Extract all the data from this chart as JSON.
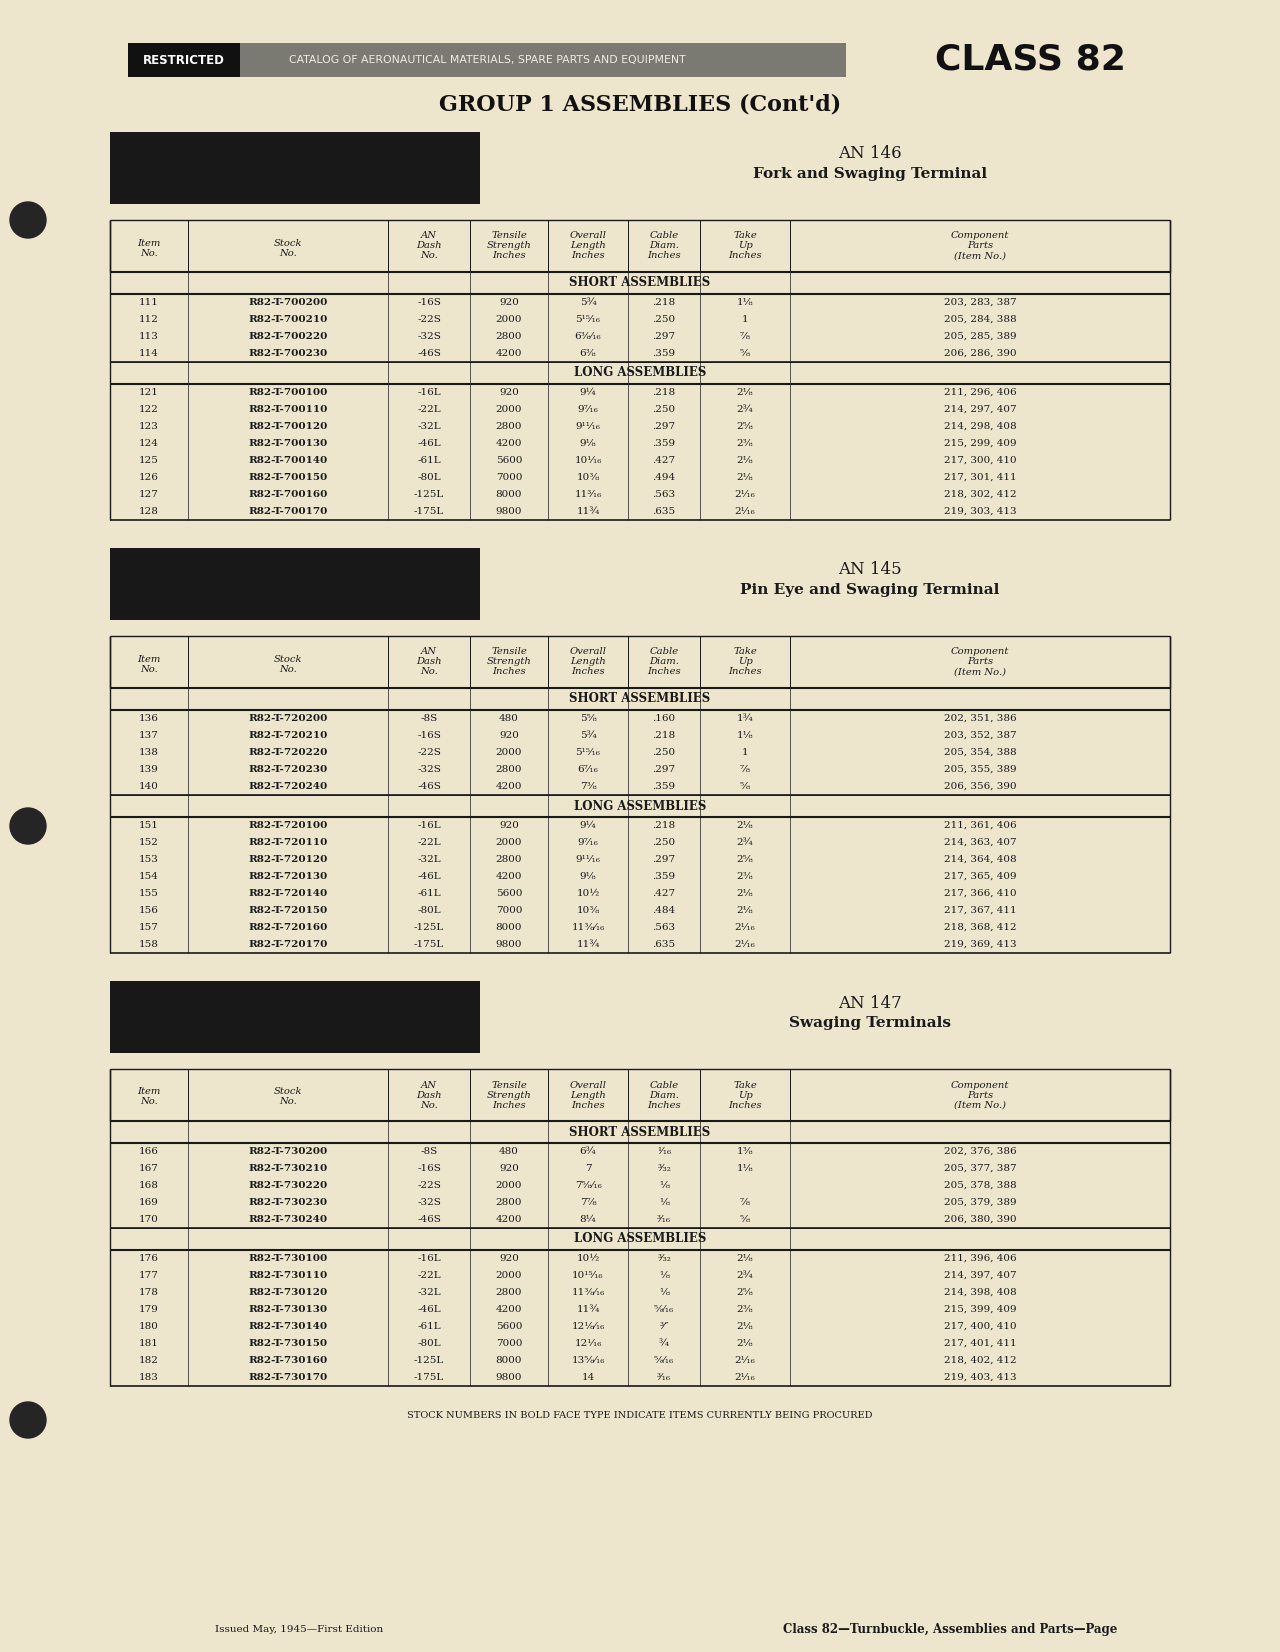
{
  "bg_color": "#ede5cc",
  "section1_title": "AN 146",
  "section1_subtitle": "Fork and Swaging Terminal",
  "section2_title": "AN 145",
  "section2_subtitle": "Pin Eye and Swaging Terminal",
  "section3_title": "AN 147",
  "section3_subtitle": "Swaging Terminals",
  "group_title": "GROUP 1 ASSEMBLIES (Cont'd)",
  "col_headers": [
    "Item\nNo.",
    "Stock\nNo.",
    "AN\nDash\nNo.",
    "Tensile\nStrength\nInches",
    "Overall\nLength\nInches",
    "Cable\nDiam.\nInches",
    "Take\nUp\nInches",
    "Component\nParts\n(Item No.)"
  ],
  "section1_short_rows": [
    [
      "111",
      "R82-T-700200",
      "-16S",
      "920",
      "5¾",
      ".218",
      "1⅛",
      "203, 283, 387"
    ],
    [
      "112",
      "R82-T-700210",
      "-22S",
      "2000",
      "5¹⁵⁄₁₆",
      ".250",
      "1",
      "205, 284, 388"
    ],
    [
      "113",
      "R82-T-700220",
      "-32S",
      "2800",
      "6⅜⁄₁₆",
      ".297",
      "⅞",
      "205, 285, 389"
    ],
    [
      "114",
      "R82-T-700230",
      "-46S",
      "4200",
      "6⅜",
      ".359",
      "⅝",
      "206, 286, 390"
    ]
  ],
  "section1_long_rows": [
    [
      "121",
      "R82-T-700100",
      "-16L",
      "920",
      "9¼",
      ".218",
      "2⅛",
      "211, 296, 406"
    ],
    [
      "122",
      "R82-T-700110",
      "-22L",
      "2000",
      "9⁷⁄₁₆",
      ".250",
      "2¾",
      "214, 297, 407"
    ],
    [
      "123",
      "R82-T-700120",
      "-32L",
      "2800",
      "9¹¹⁄₁₆",
      ".297",
      "2⅝",
      "214, 298, 408"
    ],
    [
      "124",
      "R82-T-700130",
      "-46L",
      "4200",
      "9⅛",
      ".359",
      "2⅜",
      "215, 299, 409"
    ],
    [
      "125",
      "R82-T-700140",
      "-61L",
      "5600",
      "10¹⁄₁₆",
      ".427",
      "2⅛",
      "217, 300, 410"
    ],
    [
      "126",
      "R82-T-700150",
      "-80L",
      "7000",
      "10⅜",
      ".494",
      "2⅛",
      "217, 301, 411"
    ],
    [
      "127",
      "R82-T-700160",
      "-125L",
      "8000",
      "11³⁄₁₆",
      ".563",
      "2¹⁄₁₆",
      "218, 302, 412"
    ],
    [
      "128",
      "R82-T-700170",
      "-175L",
      "9800",
      "11¾",
      ".635",
      "2¹⁄₁₆",
      "219, 303, 413"
    ]
  ],
  "section2_short_rows": [
    [
      "136",
      "R82-T-720200",
      "-8S",
      "480",
      "5⅝",
      ".160",
      "1¾",
      "202, 351, 386"
    ],
    [
      "137",
      "R82-T-720210",
      "-16S",
      "920",
      "5¾",
      ".218",
      "1⅛",
      "203, 352, 387"
    ],
    [
      "138",
      "R82-T-720220",
      "-22S",
      "2000",
      "5¹⁵⁄₁₆",
      ".250",
      "1",
      "205, 354, 388"
    ],
    [
      "139",
      "R82-T-720230",
      "-32S",
      "2800",
      "6⁷⁄₁₆",
      ".297",
      "⅞",
      "205, 355, 389"
    ],
    [
      "140",
      "R82-T-720240",
      "-46S",
      "4200",
      "7⅜",
      ".359",
      "⅝",
      "206, 356, 390"
    ]
  ],
  "section2_long_rows": [
    [
      "151",
      "R82-T-720100",
      "-16L",
      "920",
      "9¼",
      ".218",
      "2⅛",
      "211, 361, 406"
    ],
    [
      "152",
      "R82-T-720110",
      "-22L",
      "2000",
      "9⁷⁄₁₆",
      ".250",
      "2¾",
      "214, 363, 407"
    ],
    [
      "153",
      "R82-T-720120",
      "-32L",
      "2800",
      "9¹¹⁄₁₆",
      ".297",
      "2⅝",
      "214, 364, 408"
    ],
    [
      "154",
      "R82-T-720130",
      "-46L",
      "4200",
      "9⅛",
      ".359",
      "2⅜",
      "217, 365, 409"
    ],
    [
      "155",
      "R82-T-720140",
      "-61L",
      "5600",
      "10½",
      ".427",
      "2⅛",
      "217, 366, 410"
    ],
    [
      "156",
      "R82-T-720150",
      "-80L",
      "7000",
      "10⅜",
      ".484",
      "2⅛",
      "217, 367, 411"
    ],
    [
      "157",
      "R82-T-720160",
      "-125L",
      "8000",
      "11⅜⁄₁₆",
      ".563",
      "2¹⁄₁₆",
      "218, 368, 412"
    ],
    [
      "158",
      "R82-T-720170",
      "-175L",
      "9800",
      "11¾",
      ".635",
      "2¹⁄₁₆",
      "219, 369, 413"
    ]
  ],
  "section3_short_rows": [
    [
      "166",
      "R82-T-730200",
      "-8S",
      "480",
      "6¾",
      "¹⁄₁₆",
      "1⅜",
      "202, 376, 386"
    ],
    [
      "167",
      "R82-T-730210",
      "-16S",
      "920",
      "7",
      "³⁄₃₂",
      "1⅛",
      "205, 377, 387"
    ],
    [
      "168",
      "R82-T-730220",
      "-22S",
      "2000",
      "7⅝⁄₁₆",
      "⅛",
      "",
      "205, 378, 388"
    ],
    [
      "169",
      "R82-T-730230",
      "-32S",
      "2800",
      "7⅞",
      "⅛",
      "⅞",
      "205, 379, 389"
    ],
    [
      "170",
      "R82-T-730240",
      "-46S",
      "4200",
      "8¼",
      "³⁄₁₆",
      "⅝",
      "206, 380, 390"
    ]
  ],
  "section3_long_rows": [
    [
      "176",
      "R82-T-730100",
      "-16L",
      "920",
      "10½",
      "³⁄₃₂",
      "2⅛",
      "211, 396, 406"
    ],
    [
      "177",
      "R82-T-730110",
      "-22L",
      "2000",
      "10¹⁵⁄₁₆",
      "⅛",
      "2¾",
      "214, 397, 407"
    ],
    [
      "178",
      "R82-T-730120",
      "-32L",
      "2800",
      "11⅜⁄₁₆",
      "⅛",
      "2⅝",
      "214, 398, 408"
    ],
    [
      "179",
      "R82-T-730130",
      "-46L",
      "4200",
      "11¾",
      "⅝⁄₁₆",
      "2⅜",
      "215, 399, 409"
    ],
    [
      "180",
      "R82-T-730140",
      "-61L",
      "5600",
      "12⅛⁄₁₆",
      "³⁄″",
      "2⅛",
      "217, 400, 410"
    ],
    [
      "181",
      "R82-T-730150",
      "-80L",
      "7000",
      "12¹⁄₁₆",
      "¾",
      "2⅛",
      "217, 401, 411"
    ],
    [
      "182",
      "R82-T-730160",
      "-125L",
      "8000",
      "13⅝⁄₁₆",
      "⅝⁄₁₆",
      "2¹⁄₁₆",
      "218, 402, 412"
    ],
    [
      "183",
      "R82-T-730170",
      "-175L",
      "9800",
      "14",
      "³⁄₁₆",
      "2¹⁄₁₆",
      "219, 403, 413"
    ]
  ],
  "footer_left": "Issued May, 1945—First Edition",
  "footer_right": "Class 82—Turnbuckle, Assemblies and Parts—Page",
  "stock_note": "STOCK NUMBERS IN BOLD FACE TYPE INDICATE ITEMS CURRENTLY BEING PROCURED",
  "banner_text": "CATALOG OF AERONAUTICAL MATERIALS, SPARE PARTS AND EQUIPMENT",
  "class_label": "CLASS 82",
  "restricted_label": "RESTRICTED"
}
